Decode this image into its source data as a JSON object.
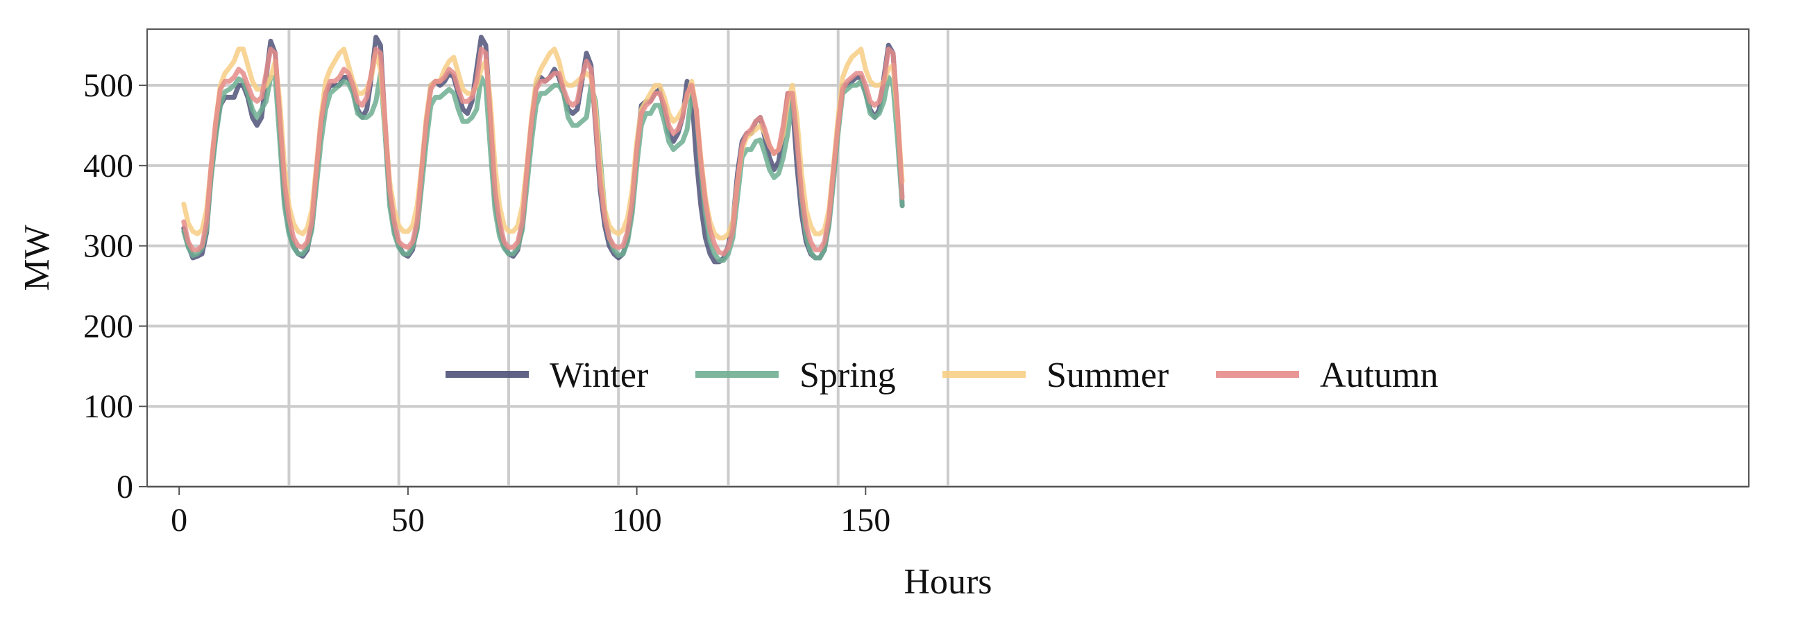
{
  "chart_data": {
    "type": "line",
    "title": "",
    "xlabel": "Hours",
    "ylabel": "MW",
    "xlim": [
      -7,
      343
    ],
    "ylim": [
      0,
      570
    ],
    "xticks": [
      0,
      50,
      100,
      150
    ],
    "xtick_labels": [
      "0",
      "50",
      "100",
      "150"
    ],
    "yticks": [
      0,
      100,
      200,
      300,
      400,
      500
    ],
    "ytick_labels": [
      "0",
      "100",
      "200",
      "300",
      "400",
      "500"
    ],
    "vertical_grid": [
      24,
      48,
      72,
      96,
      120,
      144,
      168
    ],
    "grid": true,
    "legend_position": "lower-center",
    "series": [
      {
        "name": "Winter",
        "color": "#4f5278",
        "values": [
          322,
          300,
          285,
          287,
          290,
          317,
          390,
          440,
          475,
          485,
          485,
          485,
          500,
          500,
          485,
          460,
          450,
          460,
          510,
          555,
          540,
          450,
          360,
          320,
          300,
          290,
          287,
          295,
          325,
          390,
          450,
          490,
          500,
          500,
          500,
          510,
          510,
          495,
          470,
          460,
          470,
          510,
          560,
          550,
          450,
          360,
          320,
          300,
          290,
          287,
          295,
          325,
          390,
          450,
          500,
          505,
          500,
          505,
          515,
          510,
          490,
          470,
          465,
          480,
          520,
          560,
          550,
          460,
          360,
          320,
          300,
          290,
          287,
          295,
          325,
          390,
          450,
          500,
          510,
          505,
          510,
          520,
          510,
          490,
          470,
          465,
          470,
          505,
          540,
          525,
          450,
          370,
          325,
          300,
          290,
          285,
          290,
          310,
          350,
          420,
          475,
          480,
          480,
          490,
          495,
          470,
          440,
          430,
          440,
          460,
          505,
          490,
          410,
          350,
          310,
          290,
          280,
          280,
          285,
          300,
          330,
          390,
          430,
          440,
          440,
          455,
          460,
          435,
          410,
          395,
          405,
          440,
          490,
          480,
          400,
          340,
          305,
          290,
          285,
          285,
          295,
          330,
          390,
          450,
          500,
          500,
          505,
          510,
          510,
          490,
          470,
          460,
          470,
          510,
          550,
          540,
          460,
          350
        ]
      },
      {
        "name": "Spring",
        "color": "#6fae92",
        "values": [
          318,
          298,
          288,
          290,
          297,
          320,
          385,
          435,
          475,
          492,
          495,
          500,
          508,
          505,
          490,
          470,
          460,
          470,
          480,
          510,
          510,
          430,
          350,
          315,
          298,
          290,
          290,
          298,
          320,
          375,
          430,
          470,
          490,
          495,
          500,
          505,
          502,
          490,
          465,
          460,
          460,
          465,
          480,
          515,
          440,
          350,
          315,
          298,
          290,
          290,
          298,
          320,
          375,
          430,
          475,
          485,
          485,
          490,
          495,
          490,
          470,
          455,
          455,
          460,
          470,
          510,
          500,
          420,
          345,
          312,
          297,
          290,
          290,
          298,
          320,
          375,
          430,
          475,
          490,
          490,
          495,
          500,
          500,
          490,
          460,
          450,
          450,
          455,
          460,
          500,
          480,
          410,
          345,
          310,
          295,
          288,
          290,
          305,
          340,
          400,
          450,
          465,
          465,
          475,
          475,
          455,
          430,
          420,
          425,
          430,
          445,
          490,
          470,
          395,
          340,
          305,
          290,
          282,
          282,
          290,
          310,
          360,
          410,
          420,
          420,
          430,
          432,
          415,
          395,
          385,
          390,
          410,
          440,
          485,
          440,
          360,
          312,
          292,
          285,
          285,
          295,
          325,
          380,
          440,
          490,
          495,
          500,
          500,
          505,
          490,
          465,
          460,
          465,
          480,
          510,
          500,
          430,
          350
        ]
      },
      {
        "name": "Summer",
        "color": "#f7ce85",
        "values": [
          352,
          328,
          318,
          315,
          320,
          345,
          400,
          455,
          500,
          515,
          522,
          530,
          545,
          545,
          525,
          505,
          495,
          495,
          500,
          510,
          530,
          480,
          400,
          350,
          328,
          318,
          315,
          322,
          345,
          400,
          460,
          505,
          520,
          530,
          540,
          545,
          525,
          505,
          490,
          490,
          495,
          510,
          540,
          520,
          450,
          380,
          345,
          325,
          318,
          318,
          325,
          350,
          400,
          460,
          500,
          505,
          505,
          520,
          530,
          535,
          515,
          495,
          490,
          490,
          500,
          520,
          530,
          480,
          400,
          350,
          325,
          318,
          318,
          325,
          350,
          400,
          460,
          505,
          520,
          530,
          540,
          545,
          530,
          505,
          500,
          500,
          505,
          510,
          515,
          510,
          470,
          400,
          345,
          325,
          318,
          315,
          320,
          335,
          370,
          430,
          470,
          480,
          490,
          500,
          500,
          485,
          465,
          455,
          460,
          470,
          485,
          505,
          470,
          410,
          360,
          330,
          315,
          310,
          310,
          315,
          330,
          380,
          420,
          435,
          440,
          445,
          450,
          440,
          425,
          415,
          420,
          440,
          480,
          500,
          460,
          390,
          345,
          325,
          315,
          315,
          320,
          345,
          400,
          460,
          510,
          525,
          535,
          540,
          545,
          520,
          505,
          500,
          500,
          505,
          520,
          525,
          460,
          380
        ]
      },
      {
        "name": "Autumn",
        "color": "#e58c8a",
        "values": [
          330,
          305,
          295,
          295,
          300,
          330,
          400,
          455,
          495,
          505,
          505,
          510,
          520,
          515,
          500,
          485,
          480,
          485,
          515,
          545,
          540,
          460,
          380,
          335,
          310,
          300,
          298,
          305,
          330,
          395,
          455,
          490,
          505,
          505,
          510,
          520,
          515,
          500,
          480,
          475,
          485,
          515,
          545,
          540,
          455,
          370,
          330,
          305,
          300,
          298,
          305,
          330,
          395,
          455,
          495,
          505,
          505,
          510,
          520,
          515,
          495,
          480,
          480,
          485,
          505,
          545,
          540,
          460,
          370,
          330,
          305,
          298,
          298,
          305,
          330,
          395,
          455,
          495,
          505,
          505,
          510,
          515,
          515,
          495,
          480,
          475,
          480,
          510,
          530,
          520,
          455,
          380,
          335,
          310,
          300,
          298,
          300,
          318,
          355,
          420,
          465,
          475,
          480,
          490,
          490,
          475,
          450,
          440,
          445,
          460,
          490,
          500,
          470,
          405,
          355,
          320,
          302,
          292,
          290,
          298,
          320,
          380,
          425,
          440,
          445,
          455,
          460,
          445,
          425,
          415,
          420,
          450,
          490,
          490,
          430,
          365,
          325,
          305,
          295,
          295,
          305,
          335,
          395,
          450,
          495,
          505,
          510,
          515,
          515,
          500,
          480,
          475,
          480,
          505,
          545,
          540,
          465,
          360
        ]
      }
    ]
  }
}
